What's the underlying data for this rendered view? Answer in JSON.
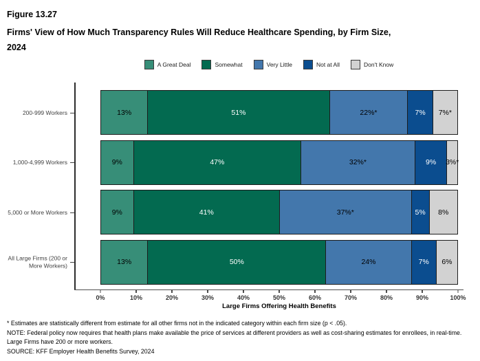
{
  "header": {
    "figure_number": "Figure 13.27",
    "title_lines": [
      "Firms' View of How Much Transparency Rules Will Reduce Healthcare Spending, by Firm Size,",
      "2024"
    ]
  },
  "chart_data": {
    "type": "bar",
    "orientation": "horizontal-stacked",
    "categories": [
      "200-999 Workers",
      "1,000-4,999 Workers",
      "5,000 or More Workers",
      "All Large Firms (200 or More Workers)"
    ],
    "series": [
      {
        "name": "A Great Deal",
        "color": "#378E78",
        "label_color": "#000000",
        "values": [
          13,
          9,
          9,
          13
        ],
        "labels": [
          "13%",
          "9%",
          "9%",
          "13%"
        ]
      },
      {
        "name": "Somewhat",
        "color": "#036A50",
        "label_color": "#FFFFFF",
        "values": [
          51,
          47,
          41,
          50
        ],
        "labels": [
          "51%",
          "47%",
          "41%",
          "50%"
        ]
      },
      {
        "name": "Very Little",
        "color": "#4377AC",
        "label_color": "#000000",
        "values": [
          22,
          32,
          37,
          24
        ],
        "labels": [
          "22%*",
          "32%*",
          "37%*",
          "24%"
        ]
      },
      {
        "name": "Not at All",
        "color": "#0B4D8F",
        "label_color": "#FFFFFF",
        "values": [
          7,
          9,
          5,
          7
        ],
        "labels": [
          "7%",
          "9%",
          "5%",
          "7%"
        ]
      },
      {
        "name": "Don't Know",
        "color": "#D2D2D2",
        "label_color": "#000000",
        "values": [
          7,
          3,
          8,
          6
        ],
        "labels": [
          "7%*",
          "3%*",
          "8%",
          "6%"
        ]
      }
    ],
    "x_ticks": [
      "0%",
      "10%",
      "20%",
      "30%",
      "40%",
      "50%",
      "60%",
      "70%",
      "80%",
      "90%",
      "100%"
    ],
    "xlim": [
      0,
      100
    ],
    "xlabel": "Large Firms Offering Health Benefits",
    "legend_position": "top"
  },
  "footnotes": {
    "star_note": "* Estimates are statistically different from estimate for all other firms not in the indicated category within each firm size (p < .05).",
    "note": "NOTE: Federal policy now requires that health plans make available the price of services at different providers as well as cost-sharing estimates for enrollees, in real-time. Large Firms have 200 or more workers.",
    "source": "SOURCE: KFF Employer Health Benefits Survey, 2024"
  }
}
